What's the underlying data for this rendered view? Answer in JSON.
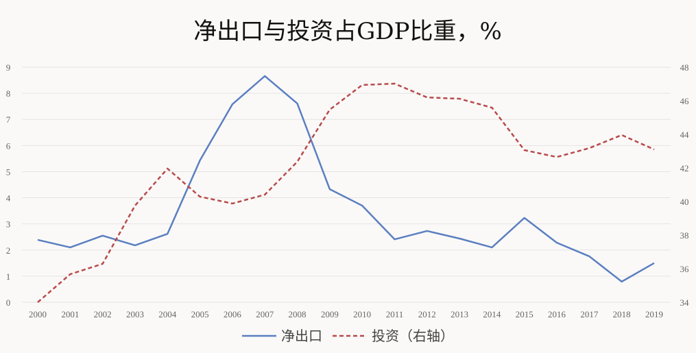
{
  "chart_data": {
    "type": "line",
    "title": "净出口与投资占GDP比重，%",
    "categories": [
      "2000",
      "2001",
      "2002",
      "2003",
      "2004",
      "2005",
      "2006",
      "2007",
      "2008",
      "2009",
      "2010",
      "2011",
      "2012",
      "2013",
      "2014",
      "2015",
      "2016",
      "2017",
      "2018",
      "2019"
    ],
    "series": [
      {
        "name": "净出口",
        "axis": "left",
        "style": "solid",
        "color": "#5b7fc0",
        "values": [
          2.39,
          2.1,
          2.55,
          2.18,
          2.62,
          5.43,
          7.58,
          8.66,
          7.61,
          4.33,
          3.7,
          2.41,
          2.73,
          2.44,
          2.1,
          3.23,
          2.28,
          1.76,
          0.79,
          1.5
        ]
      },
      {
        "name": "投资（右轴）",
        "axis": "right",
        "style": "dashed",
        "color": "#b84a4a",
        "values": [
          34.0,
          35.67,
          36.29,
          39.76,
          41.96,
          40.29,
          39.88,
          40.41,
          42.37,
          45.47,
          46.94,
          47.02,
          46.2,
          46.12,
          45.59,
          43.06,
          42.65,
          43.18,
          43.96,
          43.1
        ]
      }
    ],
    "y_left": {
      "range": [
        0,
        9
      ],
      "ticks": [
        "0",
        "1",
        "2",
        "3",
        "4",
        "5",
        "6",
        "7",
        "8",
        "9"
      ]
    },
    "y_right": {
      "range": [
        34,
        48
      ],
      "ticks": [
        "34",
        "36",
        "38",
        "40",
        "42",
        "44",
        "46",
        "48"
      ]
    },
    "grid": true,
    "legend_position": "bottom"
  }
}
